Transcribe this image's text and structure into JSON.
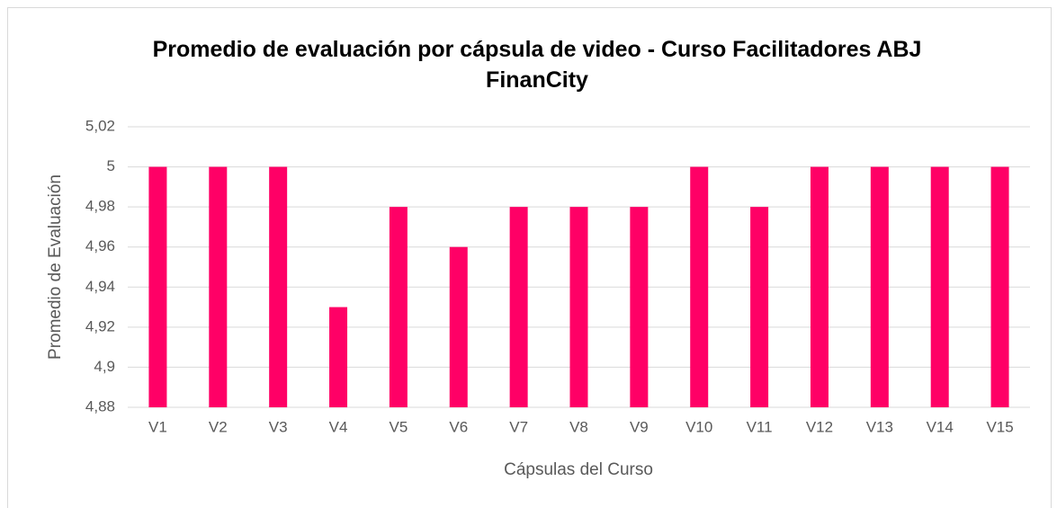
{
  "chart_data": {
    "type": "bar",
    "title": "Promedio de evaluación por cápsula de video - Curso Facilitadores ABJ FinanCity",
    "x_label": "Cápsulas del Curso",
    "y_label": "Promedio de Evaluación",
    "categories": [
      "V1",
      "V2",
      "V3",
      "V4",
      "V5",
      "V6",
      "V7",
      "V8",
      "V9",
      "V10",
      "V11",
      "V12",
      "V13",
      "V14",
      "V15"
    ],
    "values": [
      5,
      5,
      5,
      4.93,
      4.98,
      4.96,
      4.98,
      4.98,
      4.98,
      5,
      4.98,
      5,
      5,
      5,
      5
    ],
    "color": "#ff0066",
    "ylim": [
      4.88,
      5.02
    ],
    "yticks": [
      {
        "value": 4.88,
        "label": "4,88"
      },
      {
        "value": 4.9,
        "label": "4,9"
      },
      {
        "value": 4.92,
        "label": "4,92"
      },
      {
        "value": 4.94,
        "label": "4,94"
      },
      {
        "value": 4.96,
        "label": "4,96"
      },
      {
        "value": 4.98,
        "label": "4,98"
      },
      5,
      {
        "value": 5.02,
        "label": "5,02"
      }
    ],
    "grid": true
  }
}
